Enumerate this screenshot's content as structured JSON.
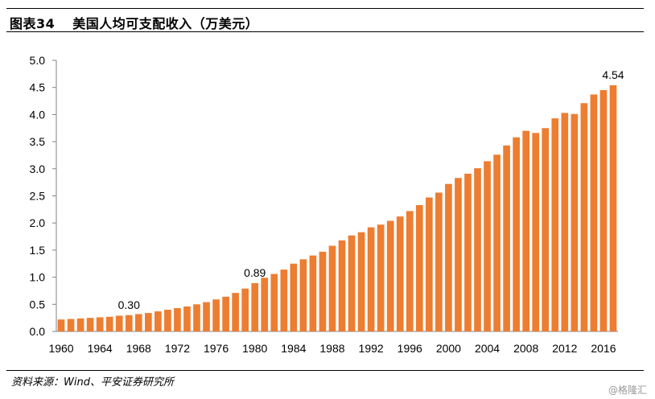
{
  "header": {
    "figure_label": "图表34",
    "title_text": "美国人均可支配收入（万美元）"
  },
  "source_text": "资料来源：Wind、平安证券研究所",
  "watermark_text": "@格隆汇",
  "colors": {
    "bar": "#ED7D31",
    "axis": "#808080"
  },
  "chart_data": {
    "type": "bar",
    "title": "美国人均可支配收入（万美元）",
    "xlabel": "",
    "ylabel": "",
    "ylim": [
      0,
      5.0
    ],
    "ytick_step": 0.5,
    "ytick_labels": [
      "0.0",
      "0.5",
      "1.0",
      "1.5",
      "2.0",
      "2.5",
      "3.0",
      "3.5",
      "4.0",
      "4.5",
      "5.0"
    ],
    "categories": [
      1960,
      1961,
      1962,
      1963,
      1964,
      1965,
      1966,
      1967,
      1968,
      1969,
      1970,
      1971,
      1972,
      1973,
      1974,
      1975,
      1976,
      1977,
      1978,
      1979,
      1980,
      1981,
      1982,
      1983,
      1984,
      1985,
      1986,
      1987,
      1988,
      1989,
      1990,
      1991,
      1992,
      1993,
      1994,
      1995,
      1996,
      1997,
      1998,
      1999,
      2000,
      2001,
      2002,
      2003,
      2004,
      2005,
      2006,
      2007,
      2008,
      2009,
      2010,
      2011,
      2012,
      2013,
      2014,
      2015,
      2016,
      2017
    ],
    "xtick_labels": [
      "1960",
      "1964",
      "1968",
      "1972",
      "1976",
      "1980",
      "1984",
      "1988",
      "1992",
      "1996",
      "2000",
      "2004",
      "2008",
      "2012",
      "2016"
    ],
    "values": [
      0.22,
      0.23,
      0.24,
      0.25,
      0.26,
      0.27,
      0.29,
      0.3,
      0.32,
      0.34,
      0.37,
      0.4,
      0.43,
      0.46,
      0.5,
      0.54,
      0.59,
      0.64,
      0.71,
      0.79,
      0.89,
      0.99,
      1.06,
      1.14,
      1.25,
      1.33,
      1.4,
      1.47,
      1.58,
      1.68,
      1.77,
      1.83,
      1.92,
      1.97,
      2.04,
      2.12,
      2.22,
      2.33,
      2.47,
      2.56,
      2.72,
      2.83,
      2.91,
      3.01,
      3.14,
      3.26,
      3.43,
      3.58,
      3.7,
      3.66,
      3.75,
      3.93,
      4.03,
      4.01,
      4.21,
      4.37,
      4.45,
      4.54
    ],
    "annotations": [
      {
        "category": 1967,
        "text": "0.30"
      },
      {
        "category": 1980,
        "text": "0.89"
      },
      {
        "category": 2017,
        "text": "4.54"
      }
    ]
  }
}
